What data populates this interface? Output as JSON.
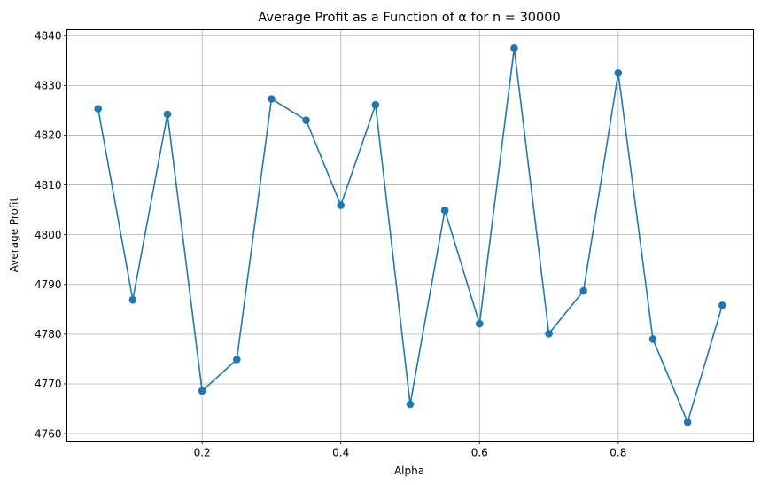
{
  "chart_data": {
    "type": "line",
    "title": "Average Profit as a Function of α for n = 30000",
    "xlabel": "Alpha",
    "ylabel": "Average Profit",
    "xlim": [
      0.005,
      0.995
    ],
    "ylim": [
      4758.5,
      4841.2
    ],
    "xticks": [
      0.2,
      0.4,
      0.6,
      0.8
    ],
    "xtick_labels": [
      "0.2",
      "0.4",
      "0.6",
      "0.8"
    ],
    "yticks": [
      4760,
      4770,
      4780,
      4790,
      4800,
      4810,
      4820,
      4830,
      4840
    ],
    "ytick_labels": [
      "4760",
      "4770",
      "4780",
      "4790",
      "4800",
      "4810",
      "4820",
      "4830",
      "4840"
    ],
    "grid": true,
    "marker": "circle",
    "color": "#1f77b4",
    "series": [
      {
        "x": [
          0.05,
          0.1,
          0.15,
          0.2,
          0.25,
          0.3,
          0.35,
          0.4,
          0.45,
          0.5,
          0.55,
          0.6,
          0.65,
          0.7,
          0.75,
          0.8,
          0.85,
          0.9,
          0.95
        ],
        "y": [
          4825.3,
          4786.9,
          4824.2,
          4768.6,
          4774.9,
          4827.3,
          4823.0,
          4805.9,
          4826.1,
          4765.9,
          4804.9,
          4782.1,
          4837.5,
          4780.1,
          4788.7,
          4832.5,
          4779.0,
          4762.3,
          4785.8
        ]
      }
    ]
  }
}
